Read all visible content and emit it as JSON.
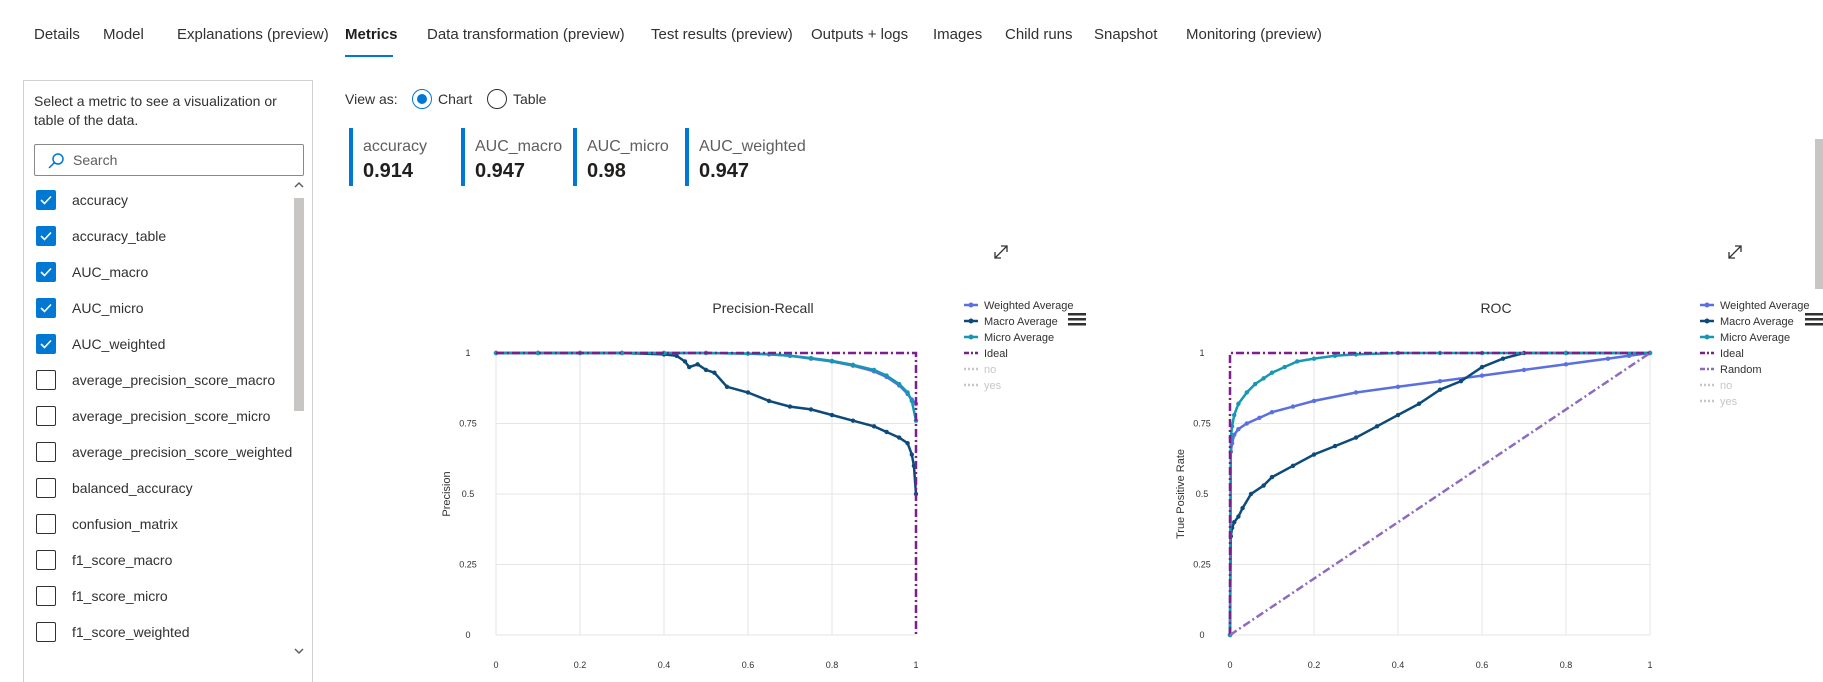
{
  "tabs": [
    {
      "label": "Details"
    },
    {
      "label": "Model"
    },
    {
      "label": "Explanations (preview)"
    },
    {
      "label": "Metrics",
      "active": true
    },
    {
      "label": "Data transformation (preview)"
    },
    {
      "label": "Test results (preview)"
    },
    {
      "label": "Outputs + logs"
    },
    {
      "label": "Images"
    },
    {
      "label": "Child runs"
    },
    {
      "label": "Snapshot"
    },
    {
      "label": "Monitoring (preview)"
    }
  ],
  "sidebar": {
    "intro": "Select a metric to see a visualization or table of the data.",
    "search_placeholder": "Search",
    "items": [
      {
        "label": "accuracy",
        "checked": true
      },
      {
        "label": "accuracy_table",
        "checked": true
      },
      {
        "label": "AUC_macro",
        "checked": true
      },
      {
        "label": "AUC_micro",
        "checked": true
      },
      {
        "label": "AUC_weighted",
        "checked": true
      },
      {
        "label": "average_precision_score_macro",
        "checked": false
      },
      {
        "label": "average_precision_score_micro",
        "checked": false
      },
      {
        "label": "average_precision_score_weighted",
        "checked": false
      },
      {
        "label": "balanced_accuracy",
        "checked": false
      },
      {
        "label": "confusion_matrix",
        "checked": false
      },
      {
        "label": "f1_score_macro",
        "checked": false
      },
      {
        "label": "f1_score_micro",
        "checked": false
      },
      {
        "label": "f1_score_weighted",
        "checked": false
      }
    ]
  },
  "view_as": {
    "label": "View as:",
    "options": [
      {
        "label": "Chart",
        "selected": true
      },
      {
        "label": "Table",
        "selected": false
      }
    ]
  },
  "metric_tiles": [
    {
      "name": "accuracy",
      "value": "0.914"
    },
    {
      "name": "AUC_macro",
      "value": "0.947"
    },
    {
      "name": "AUC_micro",
      "value": "0.98"
    },
    {
      "name": "AUC_weighted",
      "value": "0.947"
    }
  ],
  "icons": {
    "search": "search-icon",
    "check": "checkmark-icon",
    "expand": "expand-icon",
    "menu": "hamburger-menu-icon",
    "chevron_up": "chevron-up-icon",
    "chevron_down": "chevron-down-icon"
  },
  "colors": {
    "accent": "#0078d4",
    "weighted": "#5a6fe0",
    "macro": "#0d4a7a",
    "micro": "#1697b4",
    "ideal": "#7b1f8c",
    "random": "#8e6bbf",
    "muted": "#c8c6c4"
  },
  "chart_data": [
    {
      "type": "line",
      "title": "Precision-Recall",
      "xlabel": "",
      "ylabel": "Precision",
      "xlim": [
        0,
        1
      ],
      "ylim": [
        0,
        1
      ],
      "x_ticks": [
        "0",
        "0.2",
        "0.4",
        "0.6",
        "0.8",
        "1"
      ],
      "y_ticks": [
        "0",
        "0.25",
        "0.5",
        "0.75",
        "1"
      ],
      "grid": true,
      "legend_position": "right",
      "series": [
        {
          "name": "Weighted Average",
          "color": "#5a6fe0",
          "dash": "solid",
          "marker": true,
          "x": [
            0,
            0.1,
            0.2,
            0.3,
            0.4,
            0.5,
            0.6,
            0.65,
            0.7,
            0.75,
            0.8,
            0.85,
            0.9,
            0.93,
            0.96,
            0.98,
            0.99,
            1.0
          ],
          "y": [
            1,
            1,
            1,
            1,
            1,
            1,
            0.998,
            0.995,
            0.99,
            0.98,
            0.97,
            0.955,
            0.935,
            0.915,
            0.885,
            0.855,
            0.835,
            0.82
          ]
        },
        {
          "name": "Macro Average",
          "color": "#0d4a7a",
          "dash": "solid",
          "marker": true,
          "x": [
            0,
            0.1,
            0.2,
            0.3,
            0.4,
            0.43,
            0.45,
            0.46,
            0.48,
            0.5,
            0.52,
            0.55,
            0.6,
            0.65,
            0.7,
            0.75,
            0.8,
            0.85,
            0.9,
            0.93,
            0.96,
            0.98,
            0.99,
            0.995,
            1.0
          ],
          "y": [
            1,
            1,
            1,
            1,
            0.995,
            0.99,
            0.97,
            0.95,
            0.96,
            0.94,
            0.93,
            0.88,
            0.86,
            0.83,
            0.81,
            0.8,
            0.78,
            0.76,
            0.74,
            0.72,
            0.7,
            0.68,
            0.64,
            0.6,
            0.5
          ]
        },
        {
          "name": "Micro Average",
          "color": "#1697b4",
          "dash": "solid",
          "marker": true,
          "x": [
            0,
            0.1,
            0.2,
            0.3,
            0.4,
            0.5,
            0.6,
            0.65,
            0.7,
            0.75,
            0.8,
            0.85,
            0.9,
            0.93,
            0.96,
            0.98,
            0.99,
            1.0
          ],
          "y": [
            1,
            1,
            1,
            1,
            1,
            1,
            0.998,
            0.996,
            0.99,
            0.982,
            0.972,
            0.958,
            0.94,
            0.92,
            0.89,
            0.86,
            0.83,
            0.76
          ]
        },
        {
          "name": "Ideal",
          "color": "#7b1f8c",
          "dash": "dashdot",
          "marker": false,
          "x": [
            0,
            1,
            1
          ],
          "y": [
            1,
            1,
            0
          ]
        },
        {
          "name": "no",
          "color": "#c8c6c4",
          "dash": "dotted",
          "marker": false,
          "x": [],
          "y": []
        },
        {
          "name": "yes",
          "color": "#c8c6c4",
          "dash": "dotted",
          "marker": false,
          "x": [],
          "y": []
        }
      ]
    },
    {
      "type": "line",
      "title": "ROC",
      "xlabel": "",
      "ylabel": "True Positive Rate",
      "xlim": [
        0,
        1
      ],
      "ylim": [
        0,
        1
      ],
      "x_ticks": [
        "0",
        "0.2",
        "0.4",
        "0.6",
        "0.8",
        "1"
      ],
      "y_ticks": [
        "0",
        "0.25",
        "0.5",
        "0.75",
        "1"
      ],
      "grid": true,
      "legend_position": "right",
      "series": [
        {
          "name": "Weighted Average",
          "color": "#5a6fe0",
          "dash": "solid",
          "marker": true,
          "x": [
            0,
            0.002,
            0.005,
            0.01,
            0.02,
            0.04,
            0.07,
            0.1,
            0.15,
            0.2,
            0.3,
            0.4,
            0.5,
            0.6,
            0.7,
            0.8,
            0.9,
            0.95,
            1.0
          ],
          "y": [
            0,
            0.65,
            0.68,
            0.71,
            0.73,
            0.75,
            0.77,
            0.79,
            0.81,
            0.83,
            0.86,
            0.88,
            0.9,
            0.92,
            0.94,
            0.96,
            0.98,
            0.99,
            1.0
          ]
        },
        {
          "name": "Macro Average",
          "color": "#0d4a7a",
          "dash": "solid",
          "marker": true,
          "x": [
            0,
            0.002,
            0.005,
            0.01,
            0.02,
            0.03,
            0.05,
            0.08,
            0.1,
            0.15,
            0.2,
            0.25,
            0.3,
            0.35,
            0.4,
            0.45,
            0.5,
            0.55,
            0.6,
            0.65,
            0.7,
            0.8,
            1.0
          ],
          "y": [
            0,
            0.35,
            0.38,
            0.4,
            0.42,
            0.45,
            0.5,
            0.53,
            0.56,
            0.6,
            0.64,
            0.67,
            0.7,
            0.74,
            0.78,
            0.82,
            0.87,
            0.9,
            0.95,
            0.98,
            1.0,
            1.0,
            1.0
          ]
        },
        {
          "name": "Micro Average",
          "color": "#1697b4",
          "dash": "solid",
          "marker": true,
          "x": [
            0,
            0.002,
            0.005,
            0.01,
            0.02,
            0.04,
            0.06,
            0.08,
            0.1,
            0.13,
            0.16,
            0.2,
            0.25,
            0.3,
            0.4,
            0.5,
            0.6,
            0.8,
            1.0
          ],
          "y": [
            0,
            0.7,
            0.74,
            0.78,
            0.82,
            0.86,
            0.89,
            0.91,
            0.93,
            0.95,
            0.97,
            0.98,
            0.99,
            0.995,
            1.0,
            1.0,
            1.0,
            1.0,
            1.0
          ]
        },
        {
          "name": "Ideal",
          "color": "#7b1f8c",
          "dash": "dashdot",
          "marker": false,
          "x": [
            0,
            0,
            1
          ],
          "y": [
            0,
            1,
            1
          ]
        },
        {
          "name": "Random",
          "color": "#8e6bbf",
          "dash": "dashdot",
          "marker": false,
          "x": [
            0,
            1
          ],
          "y": [
            0,
            1
          ]
        },
        {
          "name": "no",
          "color": "#c8c6c4",
          "dash": "dotted",
          "marker": false,
          "x": [],
          "y": []
        },
        {
          "name": "yes",
          "color": "#c8c6c4",
          "dash": "dotted",
          "marker": false,
          "x": [],
          "y": []
        }
      ]
    }
  ]
}
